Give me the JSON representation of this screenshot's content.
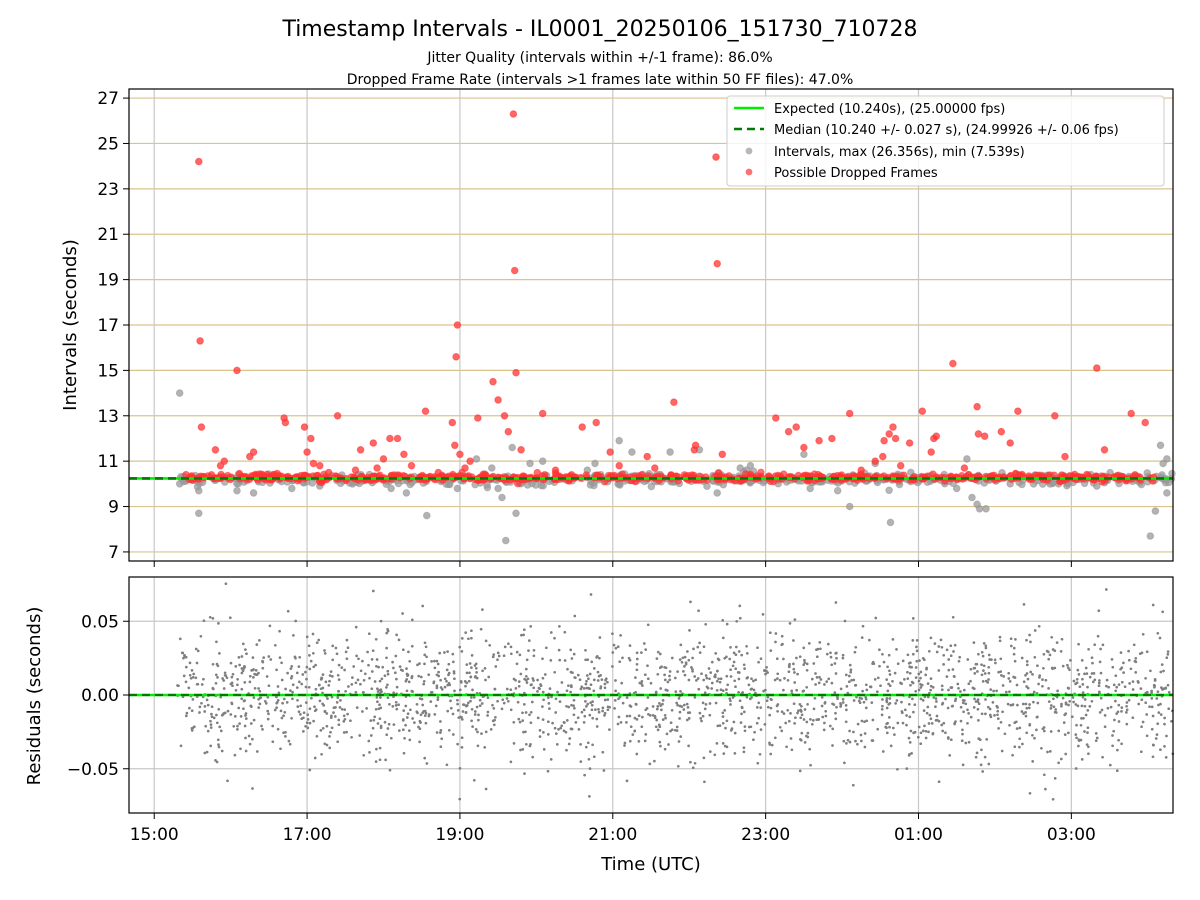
{
  "figure": {
    "title": "Timestamp Intervals - IL0001_20250106_151730_710728",
    "subtitle_1": "Jitter Quality (intervals within +/-1 frame): 86.0%",
    "subtitle_2": "Dropped Frame Rate (intervals >1 frames late within 50 FF files): 47.0%",
    "colors": {
      "expected": "#00ee00",
      "median": "#007a00",
      "intervals": "#999999",
      "dropped": "#ff3333",
      "gridlines_y": "#d9c48c",
      "gridlines_x": "#c8c8c8",
      "residuals": "#7f7f7f"
    }
  },
  "chart_data": [
    {
      "type": "scatter",
      "panel": "top",
      "title": "",
      "xlabel": "",
      "ylabel": "Intervals (seconds)",
      "x_range_hours": [
        14.67,
        28.33
      ],
      "x_tick_hours": [
        15,
        17,
        19,
        21,
        23,
        25,
        27
      ],
      "ylim": [
        6.6,
        27.4
      ],
      "yticks": [
        "7",
        "9",
        "11",
        "13",
        "15",
        "17",
        "19",
        "21",
        "23",
        "25",
        "27"
      ],
      "grid": true,
      "legend_position": "top-right",
      "legend": [
        "Expected (10.240s), (25.00000 fps)",
        "Median (10.240 +/- 0.027 s), (24.99926 +/- 0.06 fps)",
        "Intervals, max (26.356s), min (7.539s)",
        "Possible Dropped Frames"
      ],
      "expected_interval": 10.24,
      "median_interval": 10.24,
      "series": [
        {
          "name": "Possible Dropped Frames",
          "note_baseline": "dense band of points near 10.25 s from 15:20 to 04:00",
          "points": [
            [
              "15:35",
              24.2
            ],
            [
              "15:36",
              16.3
            ],
            [
              "15:37",
              12.5
            ],
            [
              "15:45",
              10.4
            ],
            [
              "15:48",
              11.5
            ],
            [
              "15:52",
              10.8
            ],
            [
              "15:55",
              11.0
            ],
            [
              "16:05",
              15.0
            ],
            [
              "16:15",
              11.2
            ],
            [
              "16:18",
              11.4
            ],
            [
              "16:42",
              12.9
            ],
            [
              "16:43",
              12.7
            ],
            [
              "16:58",
              12.5
            ],
            [
              "17:00",
              11.4
            ],
            [
              "17:03",
              12.0
            ],
            [
              "17:05",
              10.9
            ],
            [
              "17:10",
              10.8
            ],
            [
              "17:17",
              10.5
            ],
            [
              "17:24",
              13.0
            ],
            [
              "17:38",
              10.6
            ],
            [
              "17:42",
              11.5
            ],
            [
              "17:52",
              11.8
            ],
            [
              "17:55",
              10.7
            ],
            [
              "18:00",
              11.1
            ],
            [
              "18:05",
              12.0
            ],
            [
              "18:11",
              12.0
            ],
            [
              "18:16",
              11.3
            ],
            [
              "18:22",
              10.8
            ],
            [
              "18:33",
              13.2
            ],
            [
              "18:43",
              10.5
            ],
            [
              "18:54",
              12.7
            ],
            [
              "18:56",
              11.7
            ],
            [
              "18:57",
              15.6
            ],
            [
              "18:58",
              17.0
            ],
            [
              "19:00",
              11.3
            ],
            [
              "19:04",
              10.7
            ],
            [
              "19:08",
              11.0
            ],
            [
              "19:14",
              12.9
            ],
            [
              "19:26",
              14.5
            ],
            [
              "19:30",
              13.7
            ],
            [
              "19:35",
              13.0
            ],
            [
              "19:38",
              12.3
            ],
            [
              "19:42",
              26.3
            ],
            [
              "19:43",
              19.4
            ],
            [
              "19:44",
              14.9
            ],
            [
              "19:48",
              11.5
            ],
            [
              "20:05",
              13.1
            ],
            [
              "20:15",
              10.6
            ],
            [
              "20:36",
              12.5
            ],
            [
              "20:47",
              12.7
            ],
            [
              "20:58",
              11.4
            ],
            [
              "21:05",
              10.8
            ],
            [
              "21:27",
              11.2
            ],
            [
              "21:33",
              10.7
            ],
            [
              "21:48",
              13.6
            ],
            [
              "22:04",
              11.5
            ],
            [
              "22:05",
              11.7
            ],
            [
              "22:21",
              24.4
            ],
            [
              "22:22",
              19.7
            ],
            [
              "22:26",
              11.3
            ],
            [
              "23:08",
              12.9
            ],
            [
              "23:18",
              12.3
            ],
            [
              "23:24",
              12.5
            ],
            [
              "23:30",
              11.6
            ],
            [
              "23:42",
              11.9
            ],
            [
              "23:52",
              12.0
            ],
            [
              "24:06",
              13.1
            ],
            [
              "24:15",
              10.6
            ],
            [
              "24:26",
              11.0
            ],
            [
              "24:32",
              11.2
            ],
            [
              "24:33",
              11.9
            ],
            [
              "24:37",
              12.2
            ],
            [
              "24:40",
              12.5
            ],
            [
              "24:42",
              12.0
            ],
            [
              "24:46",
              10.8
            ],
            [
              "24:53",
              11.8
            ],
            [
              "25:03",
              13.2
            ],
            [
              "25:10",
              11.4
            ],
            [
              "25:12",
              12.0
            ],
            [
              "25:14",
              12.1
            ],
            [
              "25:27",
              15.3
            ],
            [
              "25:36",
              10.7
            ],
            [
              "25:46",
              13.4
            ],
            [
              "25:47",
              12.2
            ],
            [
              "25:52",
              12.1
            ],
            [
              "26:05",
              12.3
            ],
            [
              "26:12",
              11.8
            ],
            [
              "26:18",
              13.2
            ],
            [
              "26:47",
              13.0
            ],
            [
              "26:55",
              11.2
            ],
            [
              "27:20",
              15.1
            ],
            [
              "27:26",
              11.5
            ],
            [
              "27:47",
              13.1
            ],
            [
              "27:58",
              12.7
            ],
            [
              "27:50",
              10.4
            ]
          ]
        },
        {
          "name": "Intervals",
          "points": [
            [
              "15:20",
              14.0
            ],
            [
              "15:20",
              10.0
            ],
            [
              "15:35",
              9.7
            ],
            [
              "15:35",
              8.7
            ],
            [
              "16:05",
              9.7
            ],
            [
              "16:18",
              9.6
            ],
            [
              "16:40",
              10.1
            ],
            [
              "16:48",
              9.8
            ],
            [
              "17:10",
              9.9
            ],
            [
              "18:06",
              9.8
            ],
            [
              "18:18",
              9.6
            ],
            [
              "18:34",
              8.6
            ],
            [
              "18:58",
              9.8
            ],
            [
              "19:13",
              11.1
            ],
            [
              "19:25",
              10.7
            ],
            [
              "19:30",
              9.8
            ],
            [
              "19:33",
              9.4
            ],
            [
              "19:36",
              7.5
            ],
            [
              "19:41",
              11.6
            ],
            [
              "19:44",
              8.7
            ],
            [
              "19:55",
              10.9
            ],
            [
              "20:05",
              11.0
            ],
            [
              "20:40",
              10.6
            ],
            [
              "20:46",
              10.9
            ],
            [
              "21:05",
              11.9
            ],
            [
              "21:15",
              11.4
            ],
            [
              "21:45",
              11.4
            ],
            [
              "22:08",
              11.5
            ],
            [
              "22:22",
              9.6
            ],
            [
              "22:40",
              10.7
            ],
            [
              "22:45",
              10.6
            ],
            [
              "22:48",
              10.8
            ],
            [
              "23:30",
              11.3
            ],
            [
              "23:35",
              9.8
            ],
            [
              "23:55",
              10.1
            ],
            [
              "24:06",
              9.0
            ],
            [
              "24:26",
              10.9
            ],
            [
              "24:38",
              8.3
            ],
            [
              "25:20",
              10.2
            ],
            [
              "25:30",
              9.8
            ],
            [
              "25:38",
              11.1
            ],
            [
              "25:42",
              9.4
            ],
            [
              "25:46",
              9.1
            ],
            [
              "25:48",
              8.9
            ],
            [
              "25:53",
              8.9
            ],
            [
              "26:12",
              10.0
            ],
            [
              "26:50",
              10.0
            ],
            [
              "27:20",
              9.9
            ],
            [
              "27:26",
              10.1
            ],
            [
              "28:02",
              7.7
            ],
            [
              "28:06",
              8.8
            ],
            [
              "28:10",
              11.7
            ],
            [
              "28:15",
              11.1
            ],
            [
              "28:15",
              9.6
            ],
            [
              "28:12",
              10.9
            ]
          ]
        }
      ]
    },
    {
      "type": "scatter",
      "panel": "bottom",
      "title": "",
      "xlabel": "Time (UTC)",
      "ylabel": "Residuals (seconds)",
      "x_range_hours": [
        14.67,
        28.33
      ],
      "xticks": [
        "15:00",
        "17:00",
        "19:00",
        "21:00",
        "23:00",
        "01:00",
        "03:00"
      ],
      "x_tick_hours": [
        15,
        17,
        19,
        21,
        23,
        25,
        27
      ],
      "ylim": [
        -0.08,
        0.08
      ],
      "yticks": [
        "0.05",
        "0.00",
        "−0.05"
      ],
      "ytick_values": [
        0.05,
        0.0,
        -0.05
      ],
      "grid": true,
      "series": [
        {
          "name": "Residuals",
          "x_range_hours": [
            15.3,
            28.33
          ],
          "mean": 0.0,
          "approx_std": 0.022,
          "approx_points": 2200
        }
      ]
    }
  ]
}
